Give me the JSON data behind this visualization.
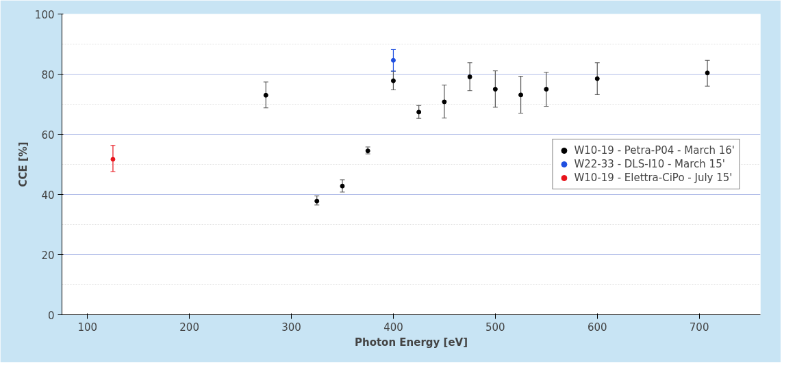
{
  "chart_data": {
    "type": "scatter",
    "xlabel": "Photon Energy [eV]",
    "ylabel": "CCE [%]",
    "xlim": [
      75,
      760
    ],
    "xticks": [
      100,
      200,
      300,
      400,
      500,
      600,
      700
    ],
    "ylim": [
      0,
      100
    ],
    "yticks": [
      0,
      20,
      40,
      60,
      80,
      100
    ],
    "grid": "y",
    "legend": "right",
    "marker": "circle",
    "series": [
      {
        "name": "W10-19 - Petra-P04 - March 16'",
        "color": "#000000",
        "x": [
          275,
          325,
          350,
          375,
          400,
          425,
          450,
          475,
          500,
          525,
          550,
          600,
          708
        ],
        "values": [
          73,
          37.8,
          42.8,
          54.5,
          77.8,
          67.4,
          70.8,
          79.1,
          75,
          73.1,
          75,
          78.5,
          80.4
        ],
        "errors": [
          [
            68.8,
            77.4
          ],
          [
            36.5,
            39.5
          ],
          [
            40.8,
            44.9
          ],
          [
            53.5,
            55.8
          ],
          [
            74.8,
            81
          ],
          [
            65.3,
            69.6
          ],
          [
            65.4,
            76.4
          ],
          [
            74.5,
            83.8
          ],
          [
            69,
            81.1
          ],
          [
            67,
            79.3
          ],
          [
            69.3,
            80.6
          ],
          [
            73.2,
            83.8
          ],
          [
            76,
            84.6
          ]
        ]
      },
      {
        "name": "W22-33 - DLS-I10 - March 15'",
        "color": "#1f4fe0",
        "x": [
          400
        ],
        "values": [
          84.6
        ],
        "errors": [
          [
            81,
            88.2
          ]
        ]
      },
      {
        "name": "W10-19 - Elettra-CiPo - July 15'",
        "color": "#e8141c",
        "x": [
          125
        ],
        "values": [
          51.7
        ],
        "errors": [
          [
            47.6,
            56.3
          ]
        ]
      }
    ]
  }
}
